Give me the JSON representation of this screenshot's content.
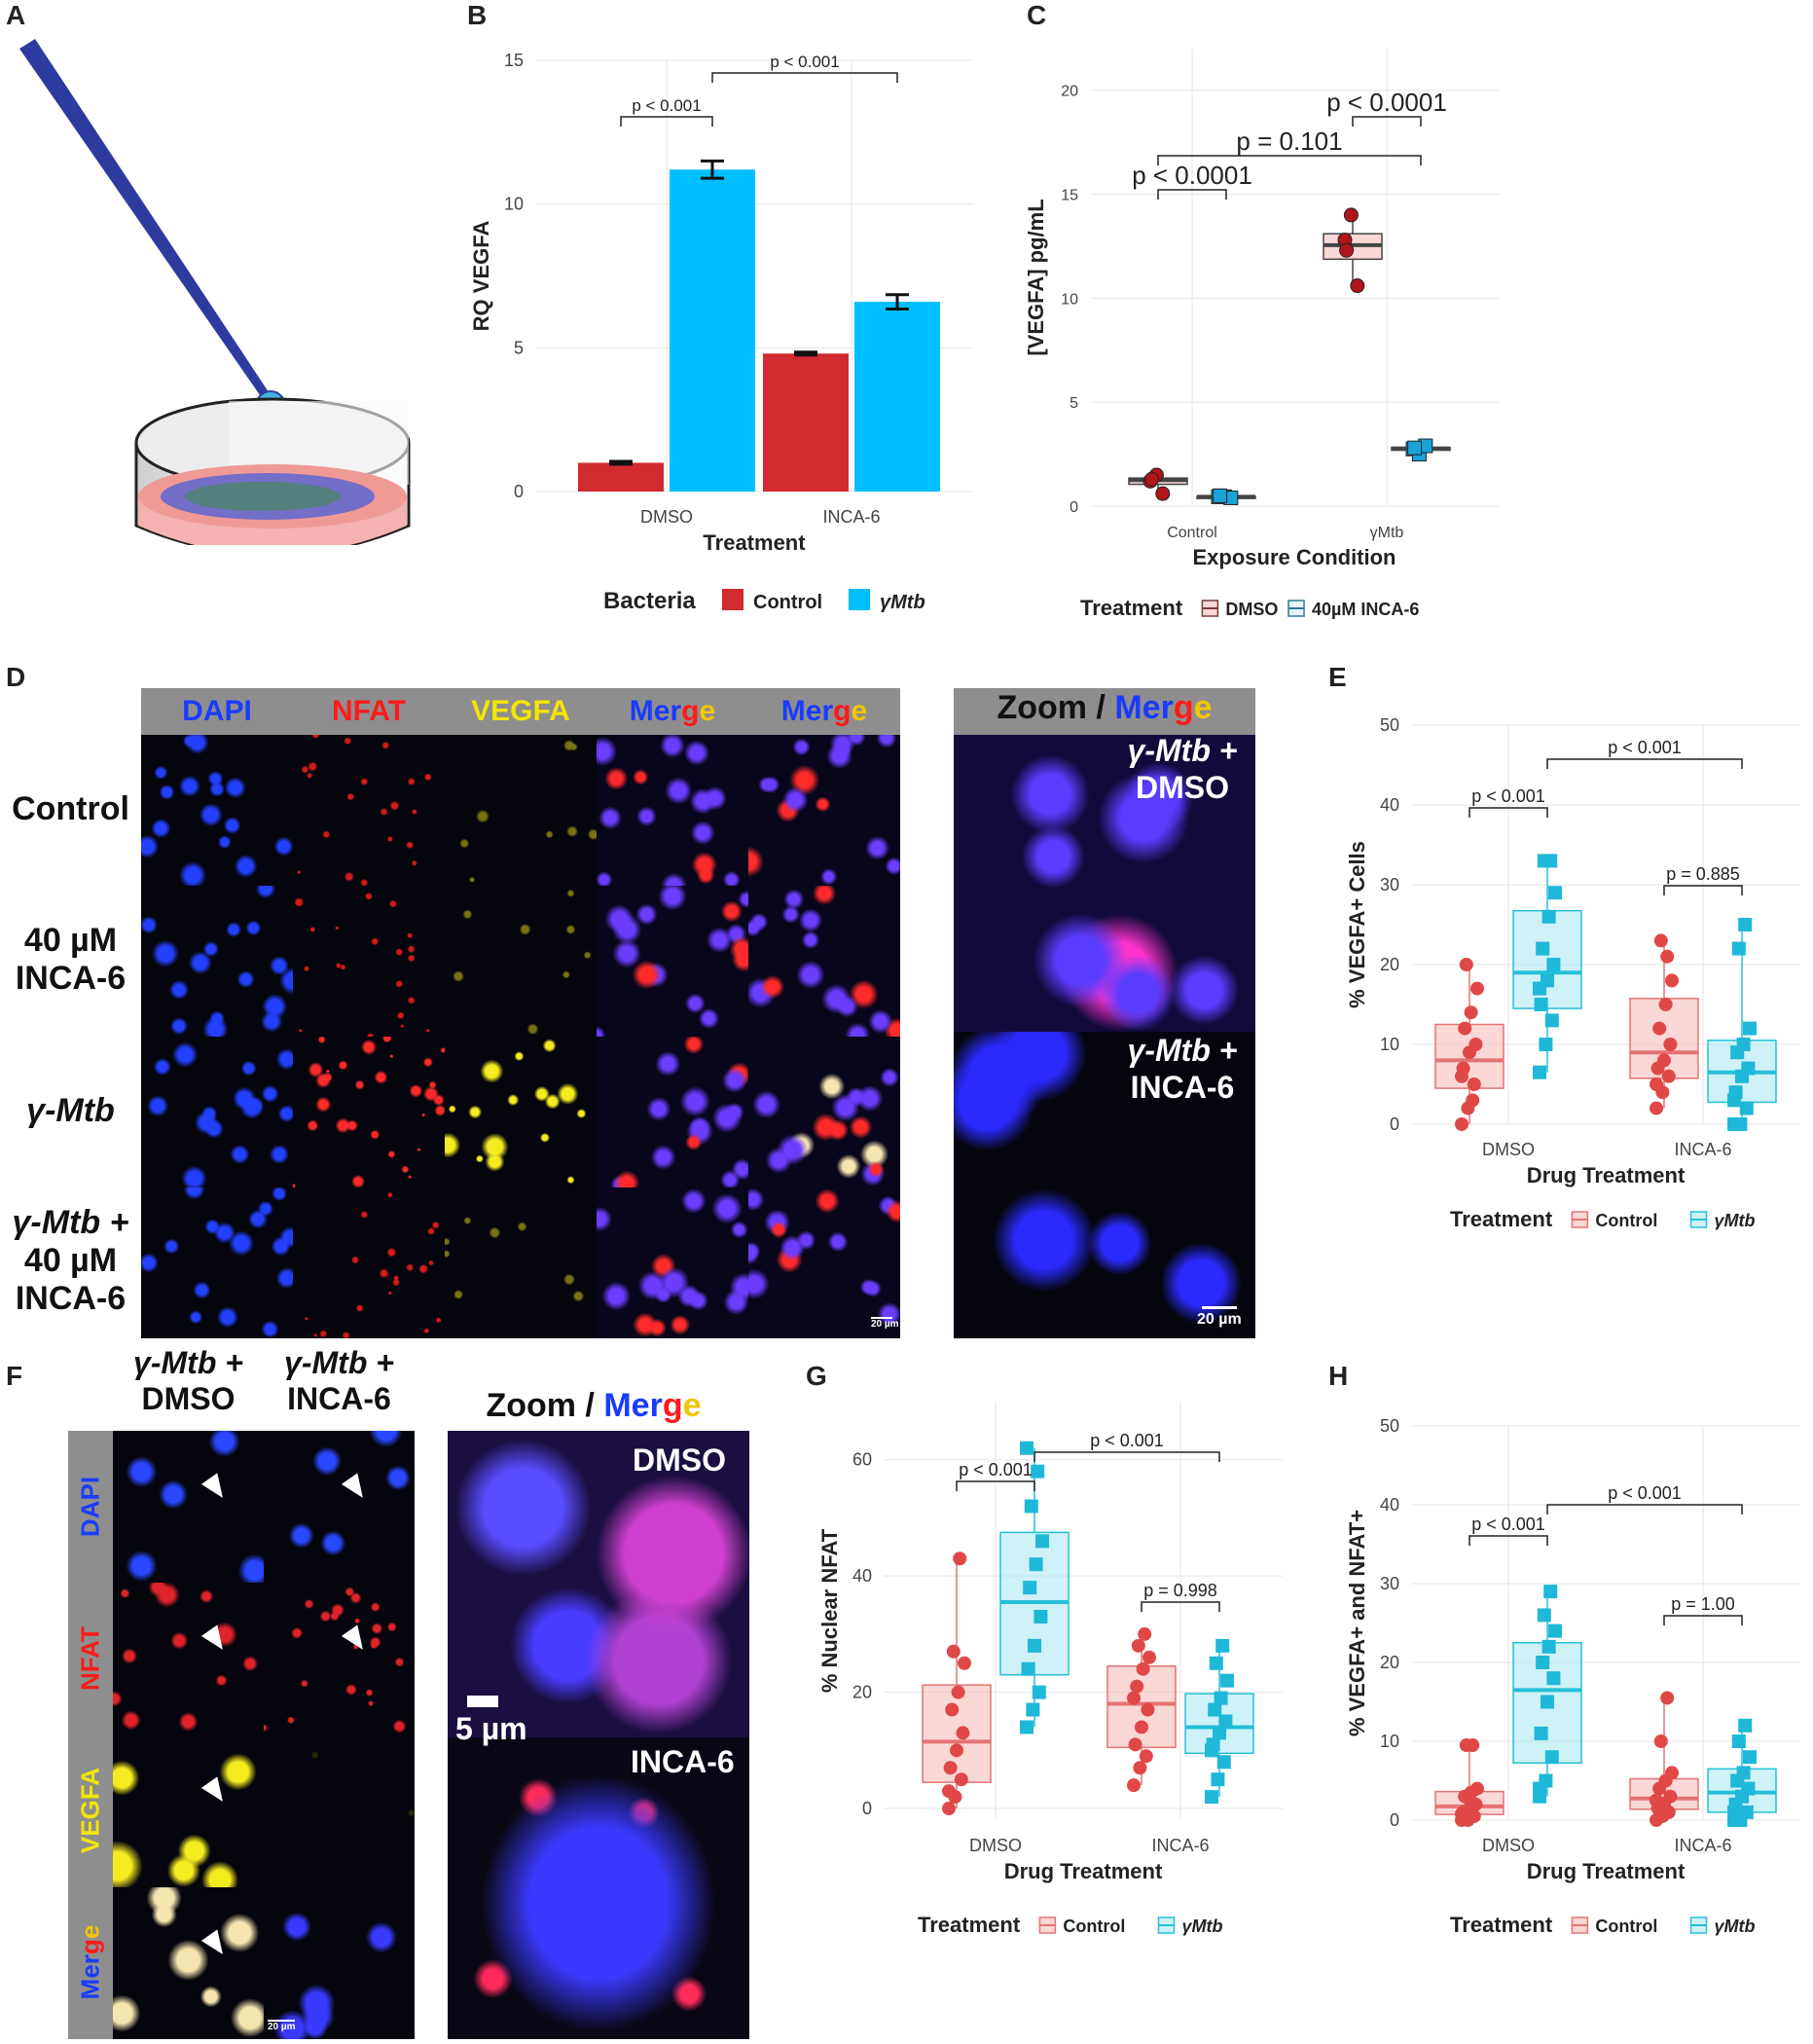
{
  "panels": {
    "a": {
      "letter": "A"
    },
    "b": {
      "letter": "B"
    },
    "c": {
      "letter": "C"
    },
    "d": {
      "letter": "D"
    },
    "e": {
      "letter": "E"
    },
    "f": {
      "letter": "F"
    },
    "g": {
      "letter": "G"
    },
    "h": {
      "letter": "H"
    }
  },
  "colors": {
    "control_red": "#d12a2f",
    "mtb_blue": "#00bfff",
    "box_red_fill": "#f4b8b5",
    "box_blue_fill": "#a8e6f2",
    "box_red_line": "#e57373",
    "box_blue_line": "#25c0d8",
    "dapi": "#1a3cff",
    "nfat": "#ff1a1a",
    "vegfa": "#f2e600"
  },
  "chart_b": {
    "type": "bar",
    "categories": [
      "DMSO",
      "INCA-6"
    ],
    "series": [
      {
        "name": "Control",
        "values": [
          1.0,
          4.8
        ],
        "errors": [
          0.05,
          0.05
        ]
      },
      {
        "name": "γMtb",
        "values": [
          11.2,
          6.6
        ],
        "errors": [
          0.3,
          0.25
        ]
      }
    ],
    "xlabel": "Treatment",
    "ylabel": "RQ VEGFA",
    "ylim": [
      0,
      15
    ],
    "yticks": [
      "0",
      "5",
      "10",
      "15"
    ],
    "legend_title": "Bacteria",
    "legend": [
      "Control",
      "γMtb"
    ],
    "sig": [
      "p < 0.001",
      "p < 0.001"
    ]
  },
  "chart_c": {
    "type": "box",
    "categories": [
      "Control",
      "γMtb"
    ],
    "series": [
      {
        "name": "DMSO",
        "points": [
          [
            1.2,
            1.5,
            0.6,
            1.3
          ],
          [
            12.8,
            14.0,
            10.6,
            12.3
          ]
        ]
      },
      {
        "name": "40µM INCA-6",
        "points": [
          [
            0.45,
            0.45,
            0.4,
            0.5
          ],
          [
            2.75,
            2.5,
            2.9,
            2.8
          ]
        ]
      }
    ],
    "xlabel": "Exposure Condition",
    "ylabel": "[VEGFA] pg/mL",
    "ylim": [
      0,
      22
    ],
    "yticks": [
      "0",
      "5",
      "10",
      "15",
      "20"
    ],
    "legend_title": "Treatment",
    "legend": [
      "DMSO",
      "40µM INCA-6"
    ],
    "sig": [
      "p < 0.0001",
      "p = 0.101",
      "p < 0.0001"
    ]
  },
  "chart_e": {
    "type": "box",
    "categories": [
      "DMSO",
      "INCA-6"
    ],
    "series": [
      {
        "name": "Control",
        "points": [
          [
            0,
            2,
            5,
            7,
            9,
            10,
            12,
            14,
            17,
            20,
            3,
            6
          ],
          [
            2,
            4,
            6,
            7,
            8,
            10,
            12,
            15,
            18,
            23,
            21,
            5
          ]
        ]
      },
      {
        "name": "γMtb",
        "points": [
          [
            6.5,
            10,
            13,
            15,
            18,
            20,
            22,
            26,
            29,
            33,
            33,
            17
          ],
          [
            0,
            0,
            2,
            4,
            6,
            7,
            9,
            10,
            12,
            22,
            25,
            3
          ]
        ]
      }
    ],
    "xlabel": "Drug Treatment",
    "ylabel": "% VEGFA+ Cells",
    "ylim": [
      0,
      50
    ],
    "yticks": [
      "0",
      "10",
      "20",
      "30",
      "40",
      "50"
    ],
    "legend_title": "Treatment",
    "legend": [
      "Control",
      "γMtb"
    ],
    "sig": [
      "p < 0.001",
      "p < 0.001",
      "p = 0.885"
    ]
  },
  "chart_g": {
    "type": "box",
    "categories": [
      "DMSO",
      "INCA-6"
    ],
    "series": [
      {
        "name": "Control",
        "points": [
          [
            0,
            2,
            5,
            7,
            10,
            13,
            17,
            20,
            25,
            27,
            43,
            3
          ],
          [
            4,
            7,
            9,
            11,
            14,
            17,
            21,
            24,
            26,
            28,
            30,
            19
          ]
        ]
      },
      {
        "name": "γMtb",
        "points": [
          [
            14,
            17,
            20,
            24,
            28,
            33,
            38,
            42,
            46,
            52,
            58,
            62
          ],
          [
            2,
            5,
            8,
            11,
            13,
            15,
            17,
            19,
            22,
            25,
            28,
            10
          ]
        ]
      }
    ],
    "xlabel": "Drug Treatment",
    "ylabel": "% Nuclear NFAT",
    "ylim": [
      -2,
      70
    ],
    "yticks": [
      "0",
      "20",
      "40",
      "60"
    ],
    "legend_title": "Treatment",
    "legend": [
      "Control",
      "γMtb"
    ],
    "sig": [
      "p < 0.001",
      "p < 0.001",
      "p = 0.998"
    ]
  },
  "chart_h": {
    "type": "box",
    "categories": [
      "DMSO",
      "INCA-6"
    ],
    "series": [
      {
        "name": "Control",
        "points": [
          [
            0,
            0,
            0.5,
            1,
            1.5,
            2,
            3,
            3.5,
            4,
            9.5,
            9.5,
            0.8
          ],
          [
            0,
            0.5,
            1,
            1.5,
            2,
            3,
            4,
            5,
            6,
            10,
            15.5,
            2.5
          ]
        ]
      },
      {
        "name": "γMtb",
        "points": [
          [
            3,
            5,
            8,
            11,
            15,
            18,
            20,
            22,
            24,
            26,
            29,
            4
          ],
          [
            0,
            0,
            1,
            2,
            3,
            4,
            5,
            6,
            8,
            10,
            12,
            1
          ]
        ]
      }
    ],
    "xlabel": "Drug Treatment",
    "ylabel": "% VEGFA+ and NFAT+",
    "ylim": [
      0,
      50
    ],
    "yticks": [
      "0",
      "10",
      "20",
      "30",
      "40",
      "50"
    ],
    "legend_title": "Treatment",
    "legend": [
      "Control",
      "γMtb"
    ],
    "sig": [
      "p < 0.001",
      "p < 0.001",
      "p = 1.00"
    ]
  },
  "panel_d": {
    "channels": [
      "DAPI",
      "NFAT",
      "VEGFA"
    ],
    "merge_label": "Merge",
    "rows": [
      {
        "lines": [
          "Control"
        ]
      },
      {
        "lines": [
          "40 µM",
          "INCA-6"
        ]
      },
      {
        "lines": [
          "γ-Mtb"
        ]
      },
      {
        "lines": [
          "γ-Mtb +",
          "40 µM",
          "INCA-6"
        ]
      }
    ],
    "zoom_prefix": "Zoom /",
    "zoom_labels": [
      [
        "γ-Mtb +",
        "DMSO"
      ],
      [
        "γ-Mtb +",
        "INCA-6"
      ]
    ],
    "scalebar_small": "20 µm",
    "scalebar": "20 µm"
  },
  "panel_f": {
    "col_headers": [
      [
        "γ-Mtb +",
        "DMSO"
      ],
      [
        "γ-Mtb +",
        "INCA-6"
      ]
    ],
    "row_labels": [
      "DAPI",
      "NFAT",
      "VEGFA",
      "Merge"
    ],
    "zoom_prefix": "Zoom /",
    "zoom_labels": [
      "DMSO",
      "INCA-6"
    ],
    "scalebar": "5 µm",
    "scalebar_small": "20 µm"
  }
}
